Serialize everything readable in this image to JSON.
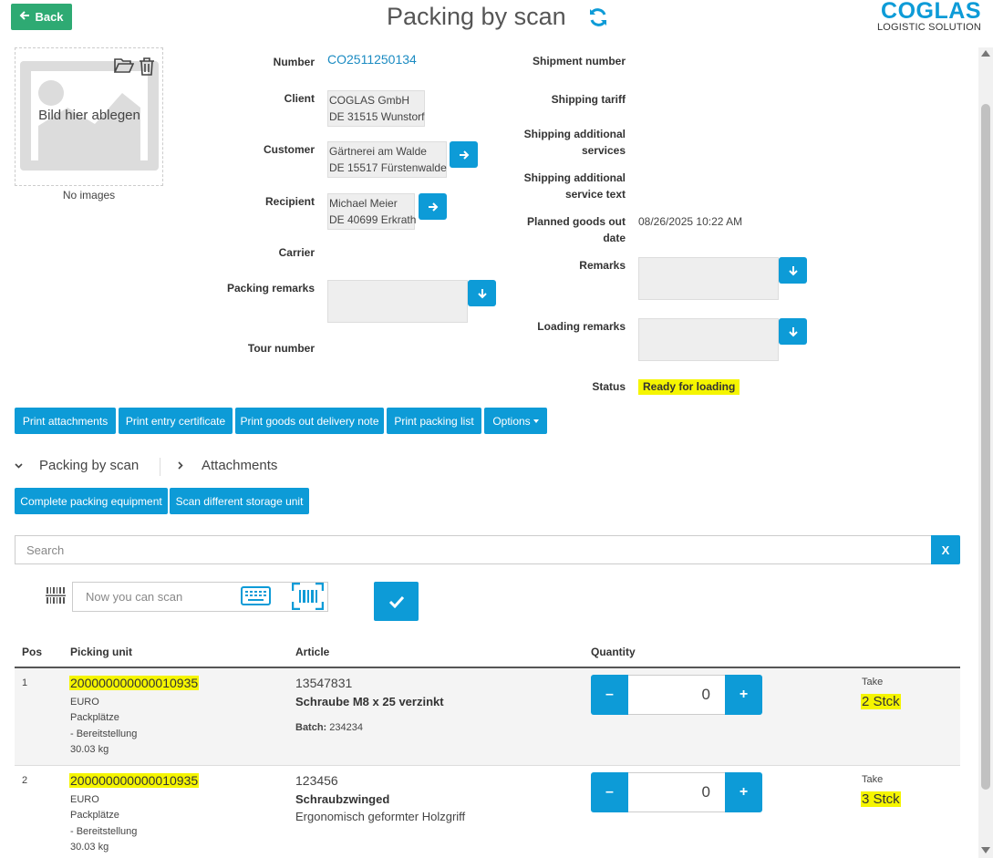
{
  "header": {
    "back_label": "Back",
    "title": "Packing by scan",
    "logo_main": "COGLAS",
    "logo_sub": "LOGISTIC SOLUTION"
  },
  "images": {
    "drop_text": "Bild hier ablegen",
    "no_images": "No images"
  },
  "form": {
    "number_label": "Number",
    "number_value": "CO2511250134",
    "client_label": "Client",
    "client_line1": "COGLAS GmbH",
    "client_line2": "DE 31515 Wunstorf",
    "customer_label": "Customer",
    "customer_line1": "Gärtnerei am Walde",
    "customer_line2": "DE 15517 Fürstenwalde",
    "recipient_label": "Recipient",
    "recipient_line1": "Michael Meier",
    "recipient_line2": "DE 40699 Erkrath",
    "carrier_label": "Carrier",
    "packing_remarks_label": "Packing remarks",
    "tour_number_label": "Tour number",
    "shipment_number_label": "Shipment number",
    "shipping_tariff_label": "Shipping tariff",
    "shipping_add_services_label": "Shipping additional services",
    "shipping_add_service_text_label": "Shipping additional service text",
    "planned_goods_out_label": "Planned goods out date",
    "planned_goods_out_value": "08/26/2025 10:22 AM",
    "remarks_label": "Remarks",
    "loading_remarks_label": "Loading remarks",
    "status_label": "Status",
    "status_value": "Ready for loading"
  },
  "actions": {
    "print_attachments": "Print attachments",
    "print_entry_certificate": "Print entry certificate",
    "print_goods_out_delivery_note": "Print goods out delivery note",
    "print_packing_list": "Print packing list",
    "options": "Options"
  },
  "tabs": {
    "packing_by_scan": "Packing by scan",
    "attachments": "Attachments"
  },
  "scan_actions": {
    "complete_packing_equipment": "Complete packing equipment",
    "scan_different_storage_unit": "Scan different storage unit"
  },
  "search": {
    "placeholder": "Search",
    "clear_label": "X"
  },
  "scan": {
    "placeholder": "Now you can scan"
  },
  "table": {
    "headers": {
      "pos": "Pos",
      "picking_unit": "Picking unit",
      "article": "Article",
      "quantity": "Quantity"
    },
    "rows": [
      {
        "pos": "1",
        "code": "200000000000010935",
        "pu_type": "EURO",
        "location1": "Packplätze",
        "location2": "- Bereitstellung",
        "weight": "30.03 kg",
        "article_number": "13547831",
        "article_name": "Schraube M8 x 25 verzinkt",
        "batch_label": "Batch:",
        "batch_value": "234234",
        "description": "",
        "qty": "0",
        "take_label": "Take",
        "take_value": "2 Stck"
      },
      {
        "pos": "2",
        "code": "200000000000010935",
        "pu_type": "EURO",
        "location1": "Packplätze",
        "location2": "- Bereitstellung",
        "weight": "30.03 kg",
        "article_number": "123456",
        "article_name": "Schraubzwinged",
        "description": "Ergonomisch geformter Holzgriff",
        "qty": "0",
        "take_label": "Take",
        "take_value": "3 Stck"
      }
    ]
  },
  "colors": {
    "accent": "#0d9bd7",
    "back_green": "#2eaa73",
    "highlight": "#f5f500"
  }
}
